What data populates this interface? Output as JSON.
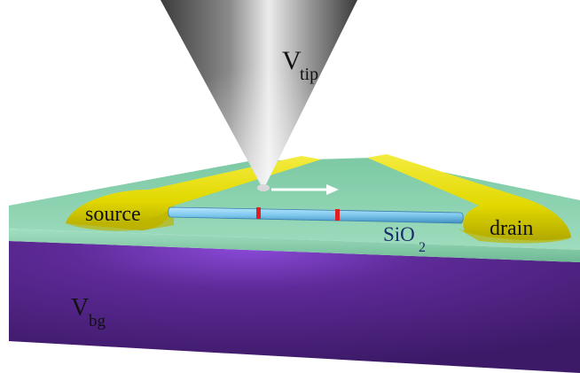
{
  "labels": {
    "tip_main": "V",
    "tip_sub": "tip",
    "source": "source",
    "drain": "drain",
    "oxide_main": "SiO",
    "oxide_sub": "2",
    "backgate_main": "V",
    "backgate_sub": "bg"
  },
  "colors": {
    "substrate": "#4a1f78",
    "substrate_glow": "#7a3fd0",
    "oxide_top": "#8fd3b0",
    "oxide_edge": "#6fb995",
    "electrode": "#e8e000",
    "electrode_shadow": "#b8b000",
    "nanotube": "#7ec8ee",
    "defect": "#e02020",
    "tip_light": "#f2f2f2",
    "tip_dark": "#4a4a4a",
    "arrow": "#ffffff"
  }
}
